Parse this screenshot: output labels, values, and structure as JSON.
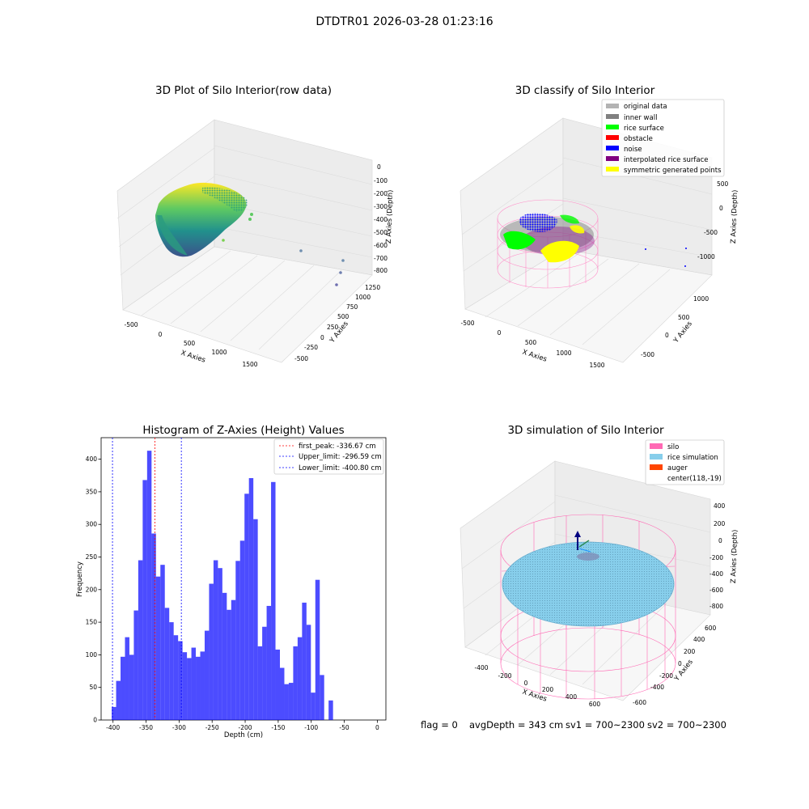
{
  "figure_title": "DTDTR01 2026-03-28 01:23:16",
  "footer": {
    "flag": "flag = 0",
    "avg": "avgDepth = 343 cm",
    "sv1": "sv1 = 700~2300",
    "sv2": "sv2 = 700~2300"
  },
  "chart_data": [
    {
      "type": "scatter",
      "projection": "3d",
      "title": "3D Plot of Silo Interior(row data)",
      "xlabel": "X Axies",
      "ylabel": "Y Axies",
      "zlabel": "Z Axies (Depth)",
      "x_ticks": [
        "-500",
        "0",
        "500",
        "1000",
        "1500"
      ],
      "y_ticks": [
        "-500",
        "-250",
        "0",
        "250",
        "500",
        "750",
        "1000",
        "1250"
      ],
      "z_ticks": [
        "-800",
        "-700",
        "-600",
        "-500",
        "-400",
        "-300",
        "-200",
        "-100",
        "0"
      ],
      "colormap": "viridis",
      "description_points": "rice surface point cloud colored by depth, plus few outliers"
    },
    {
      "type": "scatter",
      "projection": "3d",
      "title": "3D classify of Silo Interior",
      "xlabel": "X Axies",
      "ylabel": "Y Axies",
      "zlabel": "Z Axies (Depth)",
      "x_ticks": [
        "-500",
        "0",
        "500",
        "1000",
        "1500"
      ],
      "y_ticks": [
        "-500",
        "0",
        "500",
        "1000"
      ],
      "z_ticks": [
        "-1000",
        "-500",
        "0",
        "500"
      ],
      "legend": [
        {
          "label": "original data",
          "color": "#b3b3b3"
        },
        {
          "label": "inner wall",
          "color": "#808080"
        },
        {
          "label": "rice surface",
          "color": "#00ff00"
        },
        {
          "label": "obstacle",
          "color": "#ff0000"
        },
        {
          "label": "noise",
          "color": "#0000ff"
        },
        {
          "label": "interpolated rice surface",
          "color": "#800080"
        },
        {
          "label": "symmetric generated points",
          "color": "#ffff00"
        }
      ],
      "legend_position": "top-right"
    },
    {
      "type": "bar",
      "title": "Histogram of Z-Axies (Height) Values",
      "xlabel": "Depth (cm)",
      "ylabel": "Frequency",
      "xlim": [
        -418,
        13
      ],
      "ylim": [
        0,
        433
      ],
      "x_ticks": [
        -400,
        -350,
        -300,
        -250,
        -200,
        -150,
        -100,
        -50,
        0
      ],
      "y_ticks": [
        0,
        50,
        100,
        150,
        200,
        250,
        300,
        350,
        400
      ],
      "bin_width": 6.7,
      "bin_start": -402,
      "values": [
        20,
        60,
        97,
        127,
        100,
        168,
        245,
        368,
        413,
        286,
        220,
        238,
        172,
        150,
        130,
        121,
        104,
        95,
        111,
        97,
        105,
        137,
        209,
        245,
        233,
        195,
        169,
        184,
        244,
        275,
        347,
        371,
        308,
        113,
        143,
        175,
        365,
        108,
        80,
        55,
        57,
        113,
        127,
        180,
        146,
        42,
        215,
        69,
        0,
        30
      ],
      "bar_color": "#0000ff",
      "vlines": [
        {
          "label": "first_peak: -336.67 cm",
          "x": -336.67,
          "color": "#ff0000"
        },
        {
          "label": "Upper_limit: -296.59 cm",
          "x": -296.59,
          "color": "#0000ff"
        },
        {
          "label": "Lower_limit: -400.80 cm",
          "x": -400.8,
          "color": "#0000ff"
        }
      ],
      "legend_position": "top-right"
    },
    {
      "type": "scatter",
      "projection": "3d",
      "title": "3D simulation of Silo Interior",
      "xlabel": "X Axies",
      "ylabel": "Y Axies",
      "zlabel": "Z Axies (Depth)",
      "x_ticks": [
        "-400",
        "-200",
        "0",
        "200",
        "400",
        "600"
      ],
      "y_ticks": [
        "-600",
        "-400",
        "-200",
        "0",
        "200",
        "400",
        "600"
      ],
      "z_ticks": [
        "-800",
        "-600",
        "-400",
        "-200",
        "0",
        "200",
        "400"
      ],
      "legend": [
        {
          "label": "silo",
          "color": "#ff69b4"
        },
        {
          "label": "rice simulation",
          "color": "#87ceeb"
        },
        {
          "label": "auger",
          "color": "#ff4500"
        },
        {
          "label": "center(118,-19)",
          "color": ""
        }
      ],
      "legend_position": "top-right"
    }
  ]
}
